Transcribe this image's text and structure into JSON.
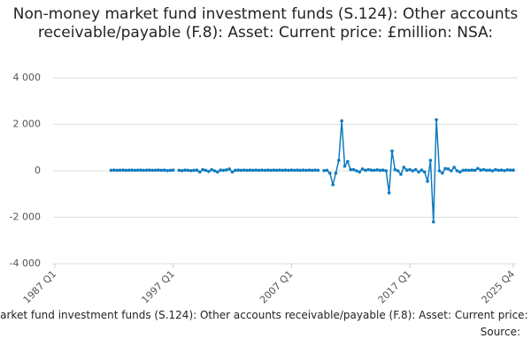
{
  "chart_data": {
    "type": "line",
    "title": "Non-money market fund investment funds (S.124): Other accounts receivable/payable (F.8): Asset: Current price: £million: NSA:",
    "source": "Source:",
    "categories": [
      "1987 Q1",
      null,
      null,
      null,
      null,
      null,
      null,
      null,
      null,
      null,
      null,
      null,
      null,
      null,
      null,
      null,
      null,
      null,
      null,
      null,
      null,
      null,
      null,
      null,
      null,
      null,
      null,
      null,
      null,
      null,
      null,
      null,
      null,
      null,
      null,
      null,
      null,
      null,
      null,
      null,
      "1997 Q1",
      null,
      null,
      null,
      null,
      null,
      null,
      null,
      null,
      null,
      null,
      null,
      null,
      null,
      null,
      null,
      null,
      null,
      null,
      null,
      null,
      null,
      null,
      null,
      null,
      null,
      null,
      null,
      null,
      null,
      null,
      null,
      null,
      null,
      null,
      null,
      null,
      null,
      null,
      null,
      "2007 Q1",
      null,
      null,
      null,
      null,
      null,
      null,
      null,
      null,
      null,
      null,
      null,
      null,
      null,
      null,
      null,
      null,
      null,
      null,
      null,
      null,
      null,
      null,
      null,
      null,
      null,
      null,
      null,
      null,
      null,
      null,
      null,
      null,
      null,
      null,
      null,
      null,
      null,
      null,
      null,
      "2017 Q1",
      null,
      null,
      null,
      null,
      null,
      null,
      null,
      null,
      null,
      null,
      null,
      null,
      null,
      null,
      null,
      null,
      null,
      null,
      null,
      null,
      null,
      null,
      null,
      null,
      null,
      null,
      null,
      null,
      null,
      null,
      null,
      null,
      null,
      null,
      "2025 Q4"
    ],
    "series": [
      {
        "name": "Non-money market fund investment funds (S.124): Other accounts receivable/payable (F.8): Asset: Current price: £million: NSA:",
        "color": "#0f7bc0",
        "values": [
          null,
          null,
          null,
          null,
          null,
          null,
          null,
          null,
          null,
          null,
          null,
          null,
          null,
          null,
          null,
          null,
          null,
          null,
          null,
          20,
          30,
          20,
          25,
          30,
          20,
          25,
          30,
          20,
          25,
          30,
          20,
          25,
          30,
          20,
          25,
          30,
          20,
          30,
          10,
          20,
          30,
          null,
          20,
          10,
          30,
          20,
          10,
          20,
          30,
          -50,
          50,
          20,
          -30,
          50,
          0,
          -50,
          30,
          20,
          40,
          80,
          -50,
          20,
          30,
          20,
          30,
          20,
          30,
          20,
          30,
          20,
          30,
          20,
          30,
          20,
          30,
          20,
          30,
          20,
          30,
          20,
          30,
          20,
          30,
          20,
          30,
          20,
          30,
          20,
          30,
          20,
          null,
          10,
          20,
          -100,
          -600,
          -100,
          450,
          2150,
          200,
          400,
          50,
          50,
          0,
          -50,
          80,
          20,
          50,
          30,
          20,
          40,
          20,
          30,
          0,
          -950,
          850,
          50,
          0,
          -150,
          150,
          30,
          50,
          0,
          50,
          -50,
          30,
          -50,
          -450,
          450,
          -2200,
          2200,
          0,
          -100,
          100,
          80,
          0,
          150,
          0,
          -50,
          20,
          30,
          20,
          30,
          20,
          100,
          30,
          50,
          20,
          30,
          0,
          50,
          20,
          30,
          10,
          40,
          30,
          30
        ]
      }
    ],
    "ylim": [
      -4000,
      4000
    ],
    "yticks": [
      {
        "value": -4000,
        "label": "-4 000"
      },
      {
        "value": -2000,
        "label": "-2 000"
      },
      0,
      {
        "value": 2000,
        "label": "2 000"
      },
      {
        "value": 4000,
        "label": "4 000"
      }
    ],
    "grid": true
  }
}
